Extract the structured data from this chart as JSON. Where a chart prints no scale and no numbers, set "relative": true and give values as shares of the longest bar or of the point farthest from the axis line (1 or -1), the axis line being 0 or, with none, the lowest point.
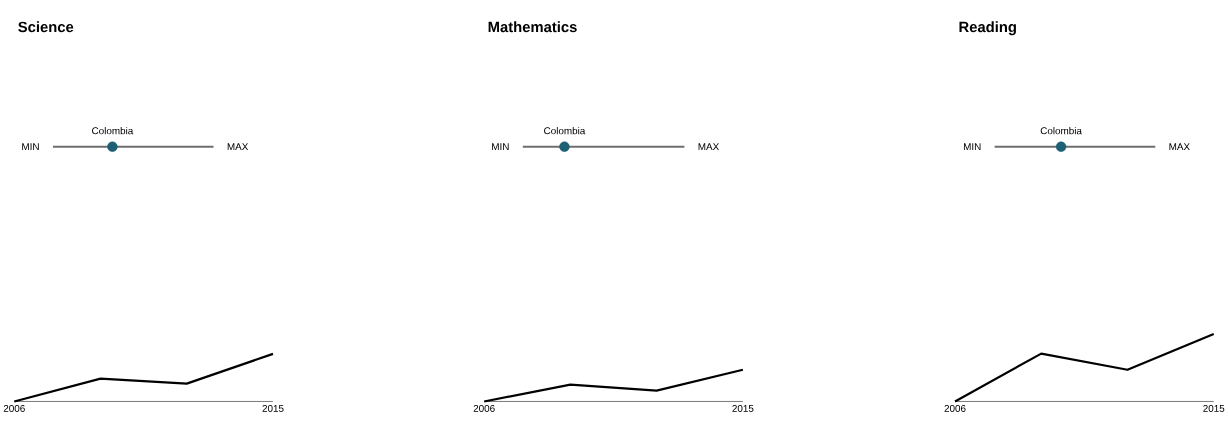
{
  "chart_data": [
    {
      "type": "other",
      "title": "Science",
      "color": "#1d5f74",
      "annotations": [
        "MIN",
        "Colombia",
        "MAX"
      ]
    },
    {
      "type": "line",
      "relative": true,
      "x": [
        2006,
        2009,
        2012,
        2015
      ],
      "xlim": [
        2006,
        2015
      ],
      "xticks": [
        2006,
        2015
      ],
      "tick_labels": "x",
      "series": [
        {
          "color": "#000000",
          "values": [
            0,
            0.48,
            0.375,
            1
          ]
        }
      ]
    },
    {
      "type": "other",
      "title": "Mathematics",
      "color": "#1d5f74",
      "annotations": [
        "MIN",
        "Colombia",
        "MAX"
      ]
    },
    {
      "type": "line",
      "relative": true,
      "x": [
        2006,
        2009,
        2012,
        2015
      ],
      "xlim": [
        2006,
        2015
      ],
      "xticks": [
        2006,
        2015
      ],
      "tick_labels": "x",
      "series": [
        {
          "color": "#000000",
          "values": [
            0,
            0.53,
            0.34,
            1
          ]
        }
      ]
    },
    {
      "type": "other",
      "title": "Reading",
      "color": "#1d5f74",
      "annotations": [
        "MIN",
        "Colombia",
        "MAX"
      ]
    },
    {
      "type": "line",
      "relative": true,
      "x": [
        2006,
        2009,
        2012,
        2015
      ],
      "xlim": [
        2006,
        2015
      ],
      "xticks": [
        2006,
        2015
      ],
      "tick_labels": "x",
      "series": [
        {
          "color": "#000000",
          "values": [
            0,
            0.71,
            0.47,
            1
          ]
        }
      ]
    }
  ]
}
